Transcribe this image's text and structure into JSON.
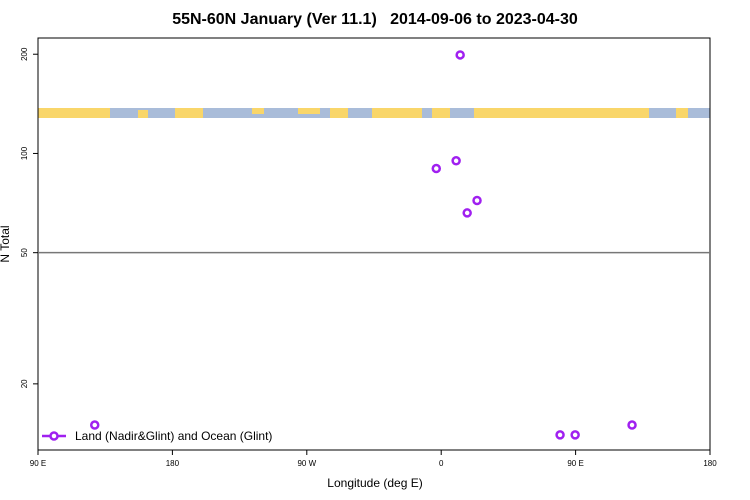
{
  "chart_data": {
    "type": "scatter",
    "title": "55N-60N January (Ver 11.1)   2014-09-06 to 2023-04-30",
    "xlabel": "Longitude (deg E)",
    "ylabel": "N Total",
    "series": [
      {
        "name": "Land (Nadir&Glint) and Ocean (Glint)",
        "color": "#a020f0",
        "x": [
          -232,
          12.7,
          -3.3,
          10,
          24,
          17.4,
          79.6,
          89.7,
          127.8
        ],
        "values": [
          15,
          199,
          90,
          95,
          72,
          66,
          14,
          14,
          15
        ]
      }
    ],
    "xlim": [
      -270,
      180
    ],
    "xticks": [
      {
        "value": -270,
        "label": "90 E"
      },
      {
        "value": -180,
        "label": "180"
      },
      {
        "value": -90,
        "label": "90 W"
      },
      0,
      {
        "value": 90,
        "label": "90 E"
      },
      180
    ],
    "ylim": [
      12.6,
      224
    ],
    "yscale": "log",
    "yticks": [
      20,
      50,
      100,
      200
    ],
    "hline": 50,
    "grid": false,
    "legend": "lower left"
  }
}
